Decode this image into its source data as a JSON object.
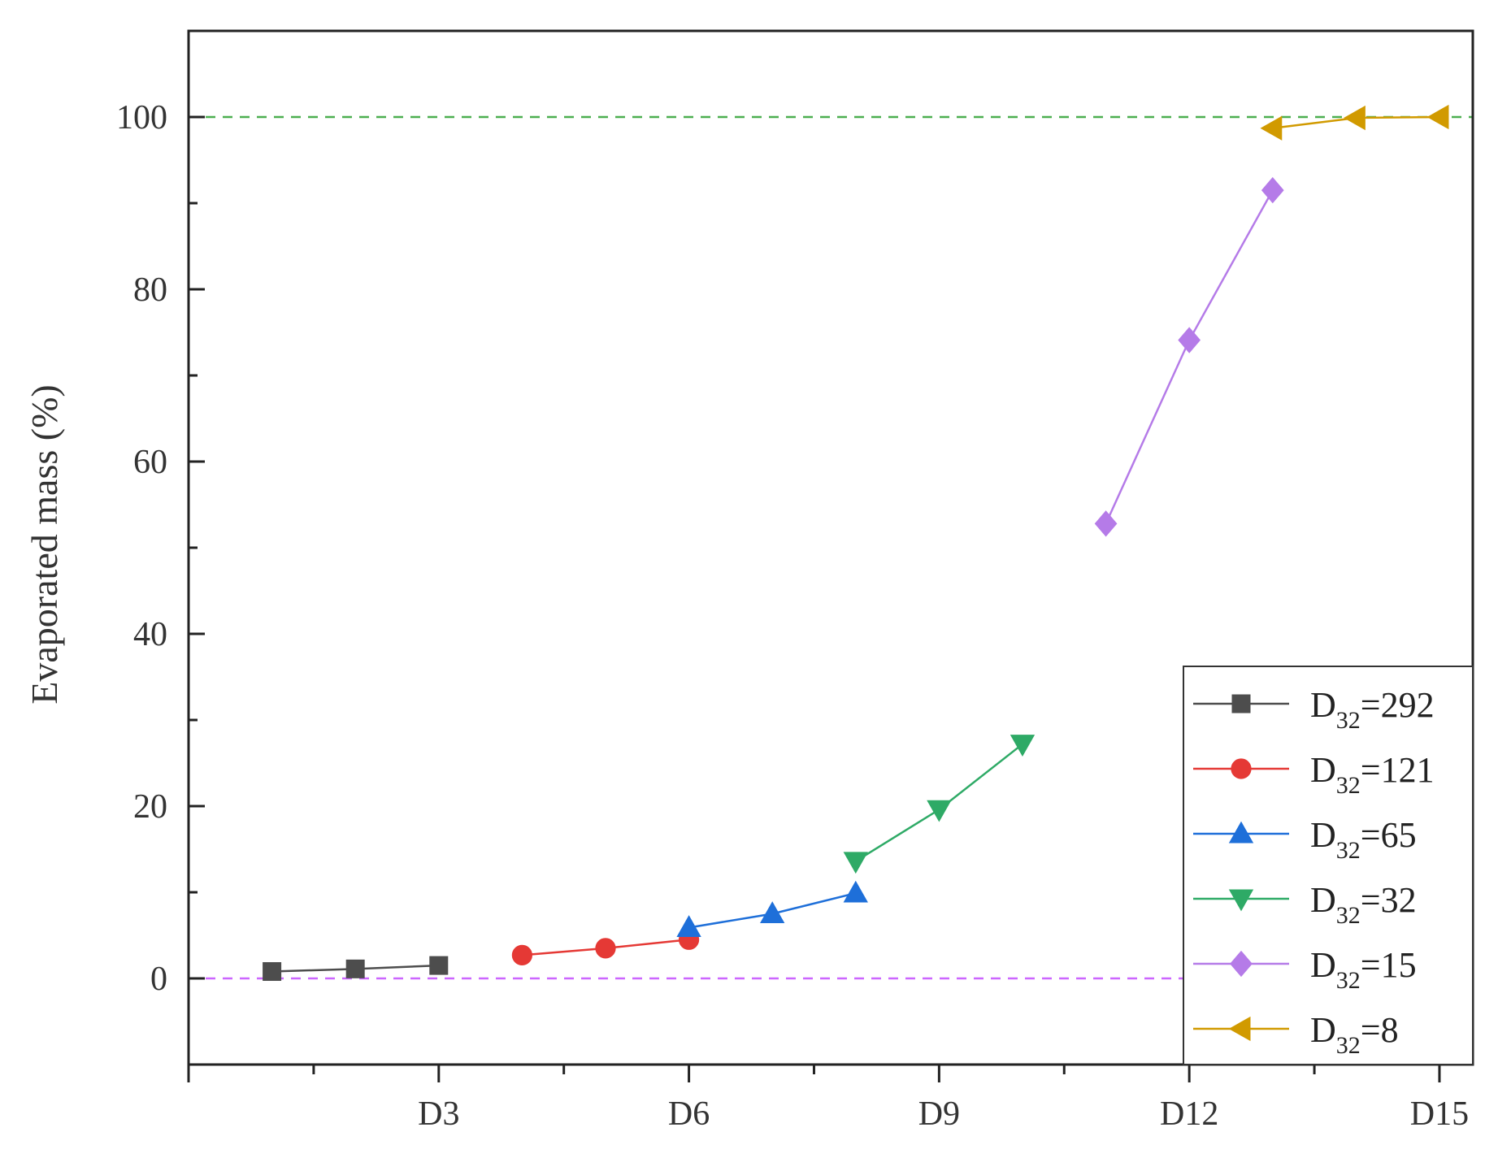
{
  "chart_data": {
    "type": "line",
    "title": "",
    "xlabel": "",
    "ylabel": "Evaporated mass (%)",
    "x_major_ticks": [
      "D3",
      "D6",
      "D9",
      "D12",
      "D15"
    ],
    "xlim": [
      0,
      15.4
    ],
    "ylim": [
      -10,
      110
    ],
    "y_major_ticks": [
      0,
      20,
      40,
      60,
      80,
      100
    ],
    "y_minor_step": 10,
    "x_minor_step": 1.5,
    "grid": false,
    "legend_position": "bottom-right",
    "reference_lines": [
      {
        "y": 100,
        "color": "#4caf50",
        "style": "dashed"
      },
      {
        "y": 0,
        "color": "#cc66ff",
        "style": "dashed"
      }
    ],
    "series": [
      {
        "name_main": "D",
        "name_sub": "32",
        "name_rest": "=292",
        "color": "#4d4d4d",
        "marker": "square",
        "points": [
          [
            1,
            0.8
          ],
          [
            2,
            1.1
          ],
          [
            3,
            1.5
          ]
        ]
      },
      {
        "name_main": "D",
        "name_sub": "32",
        "name_rest": "=121",
        "color": "#e53935",
        "marker": "circle",
        "points": [
          [
            4,
            2.7
          ],
          [
            5,
            3.5
          ],
          [
            6,
            4.5
          ]
        ]
      },
      {
        "name_main": "D",
        "name_sub": "32",
        "name_rest": "=65",
        "color": "#1e6fd9",
        "marker": "triangle-up",
        "points": [
          [
            6,
            5.9
          ],
          [
            7,
            7.5
          ],
          [
            8,
            9.9
          ]
        ]
      },
      {
        "name_main": "D",
        "name_sub": "32",
        "name_rest": "=32",
        "color": "#2eaa66",
        "marker": "triangle-down",
        "points": [
          [
            8,
            13.6
          ],
          [
            9,
            19.6
          ],
          [
            10,
            27.2
          ]
        ]
      },
      {
        "name_main": "D",
        "name_sub": "32",
        "name_rest": "=15",
        "color": "#b57be8",
        "marker": "diamond",
        "points": [
          [
            11,
            52.8
          ],
          [
            12,
            74.1
          ],
          [
            13,
            91.5
          ]
        ]
      },
      {
        "name_main": "D",
        "name_sub": "32",
        "name_rest": "=8",
        "color": "#d19a00",
        "marker": "triangle-left",
        "points": [
          [
            13,
            98.7
          ],
          [
            14,
            99.9
          ],
          [
            15,
            100
          ]
        ]
      }
    ]
  }
}
